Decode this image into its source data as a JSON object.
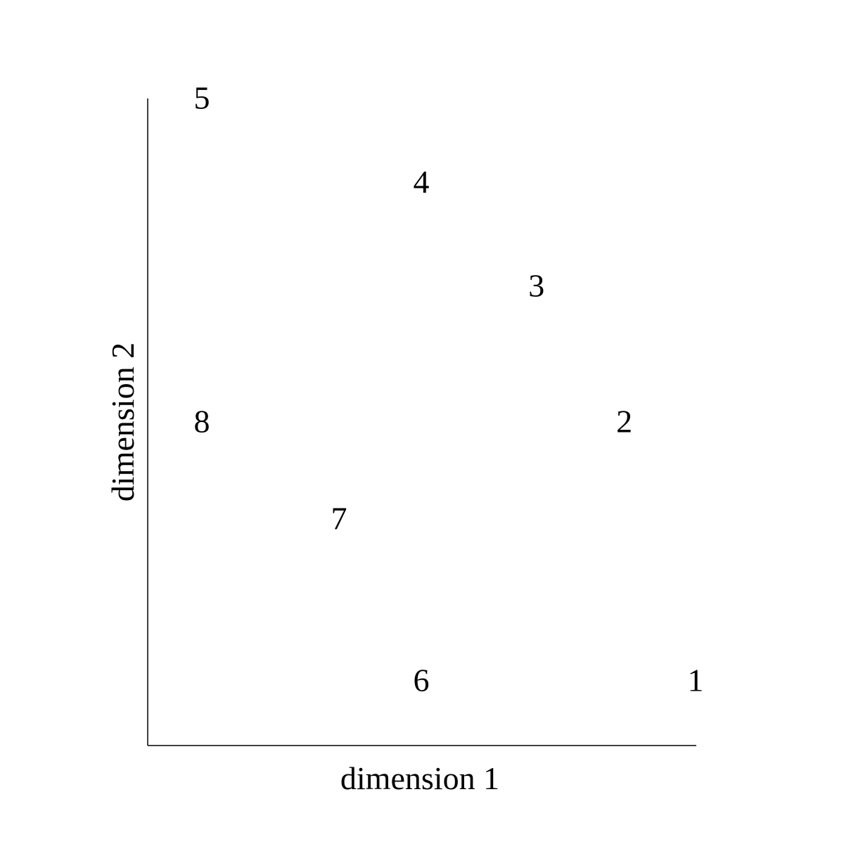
{
  "chart_data": {
    "type": "scatter",
    "title": "",
    "xlabel": "dimension 1",
    "ylabel": "dimension 2",
    "xlim": [
      0,
      10
    ],
    "ylim": [
      0,
      10
    ],
    "grid": false,
    "axis_ticks": false,
    "marker": "text-label",
    "points": [
      {
        "label": "1",
        "x": 10.0,
        "y": 1.0
      },
      {
        "label": "2",
        "x": 8.7,
        "y": 5.0
      },
      {
        "label": "3",
        "x": 7.1,
        "y": 7.1
      },
      {
        "label": "4",
        "x": 5.0,
        "y": 8.7
      },
      {
        "label": "5",
        "x": 1.0,
        "y": 10.0
      },
      {
        "label": "6",
        "x": 5.0,
        "y": 1.0
      },
      {
        "label": "7",
        "x": 3.5,
        "y": 3.5
      },
      {
        "label": "8",
        "x": 1.0,
        "y": 5.0
      }
    ]
  }
}
